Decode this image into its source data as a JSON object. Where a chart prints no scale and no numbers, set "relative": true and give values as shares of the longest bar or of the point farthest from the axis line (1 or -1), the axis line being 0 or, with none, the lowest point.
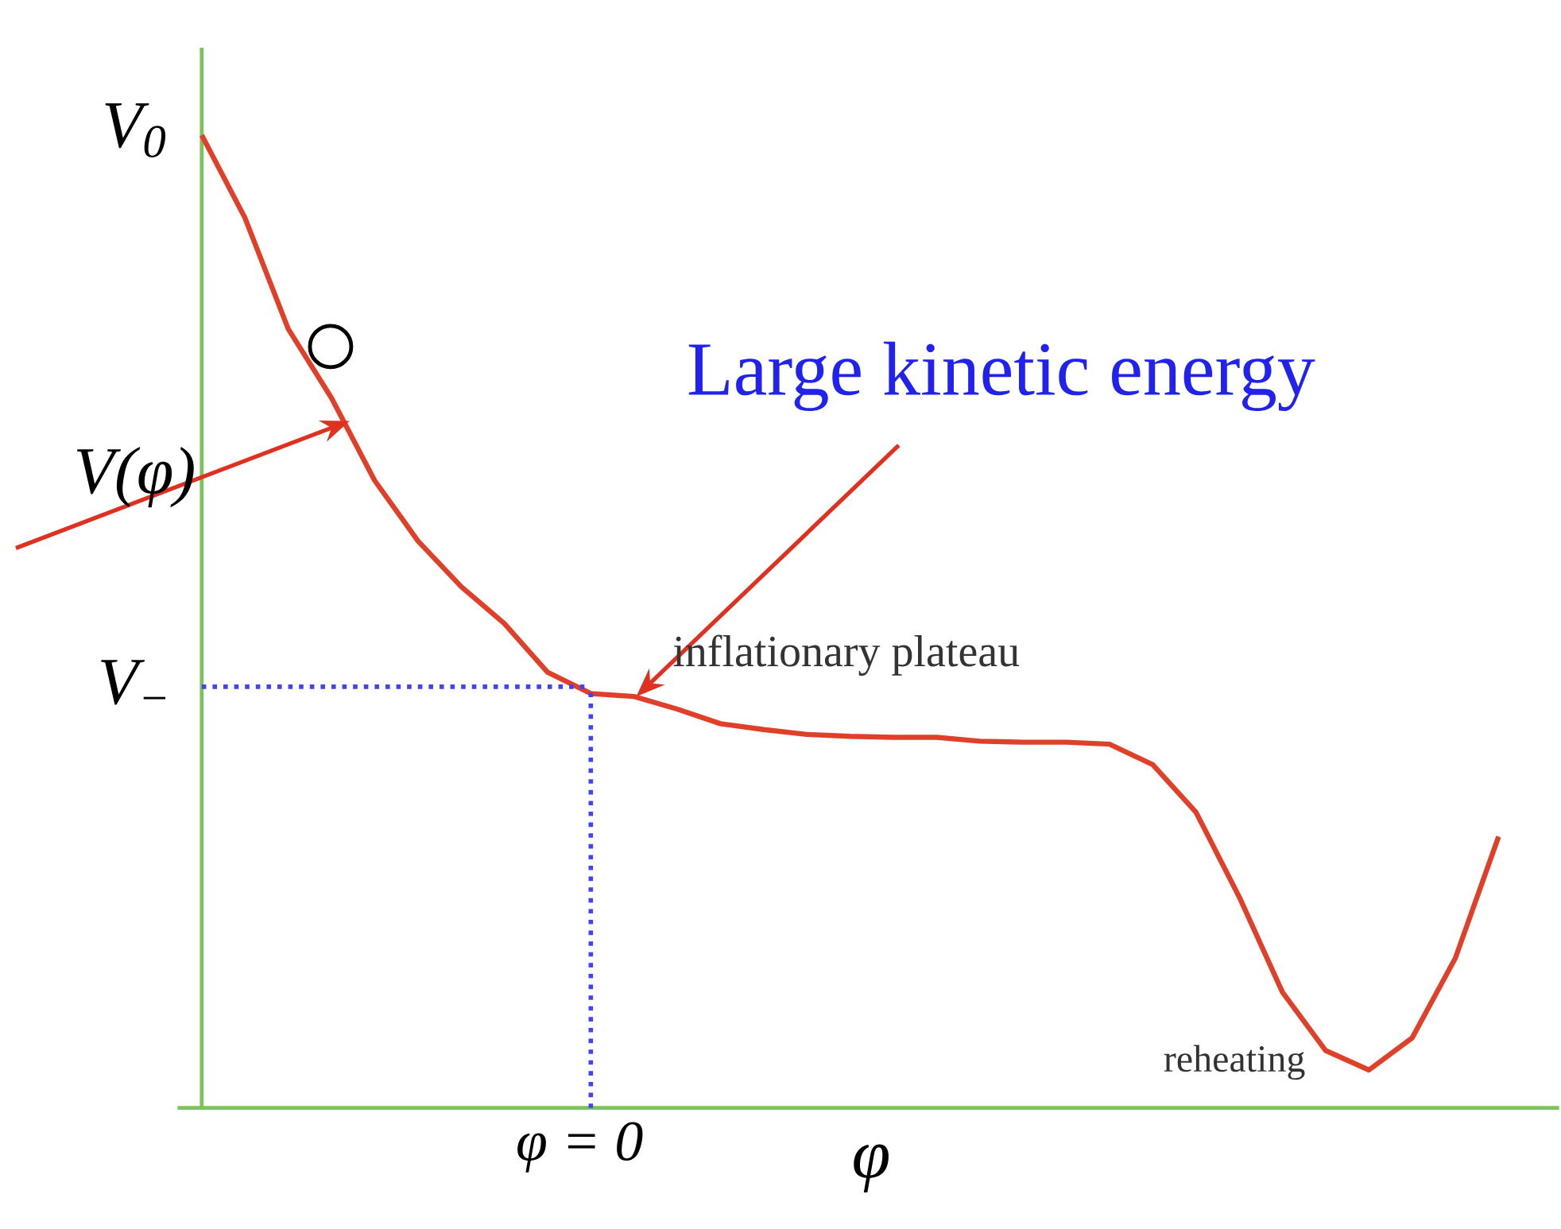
{
  "chart_data": {
    "type": "line",
    "relative": true,
    "xlabel": "φ",
    "color": "#e0402a",
    "categories": [
      null,
      null,
      null,
      null,
      null,
      null,
      null,
      null,
      null,
      null,
      null,
      null,
      null,
      null,
      null,
      null,
      null,
      null,
      null,
      null,
      null,
      null,
      null,
      null,
      null,
      null,
      null,
      null,
      null,
      null,
      null
    ],
    "values": [
      1.0,
      0.915,
      0.801,
      0.73,
      0.645,
      0.583,
      0.536,
      0.498,
      0.448,
      0.426,
      0.423,
      0.41,
      0.395,
      0.389,
      0.384,
      0.382,
      0.381,
      0.381,
      0.377,
      0.376,
      0.376,
      0.374,
      0.353,
      0.304,
      0.217,
      0.119,
      0.059,
      0.039,
      0.072,
      0.154,
      0.279
    ],
    "ref_lines": [
      {
        "axis": "y",
        "value": 0.433,
        "label": "V$_{−}$",
        "color": "#4444ee",
        "line_style": "dotted"
      }
    ],
    "annotations": [
      "V$_{0}$",
      "V(φ)",
      "Large kinetic energy",
      "inflationary plateau",
      "reheating",
      "φ = 0"
    ]
  }
}
